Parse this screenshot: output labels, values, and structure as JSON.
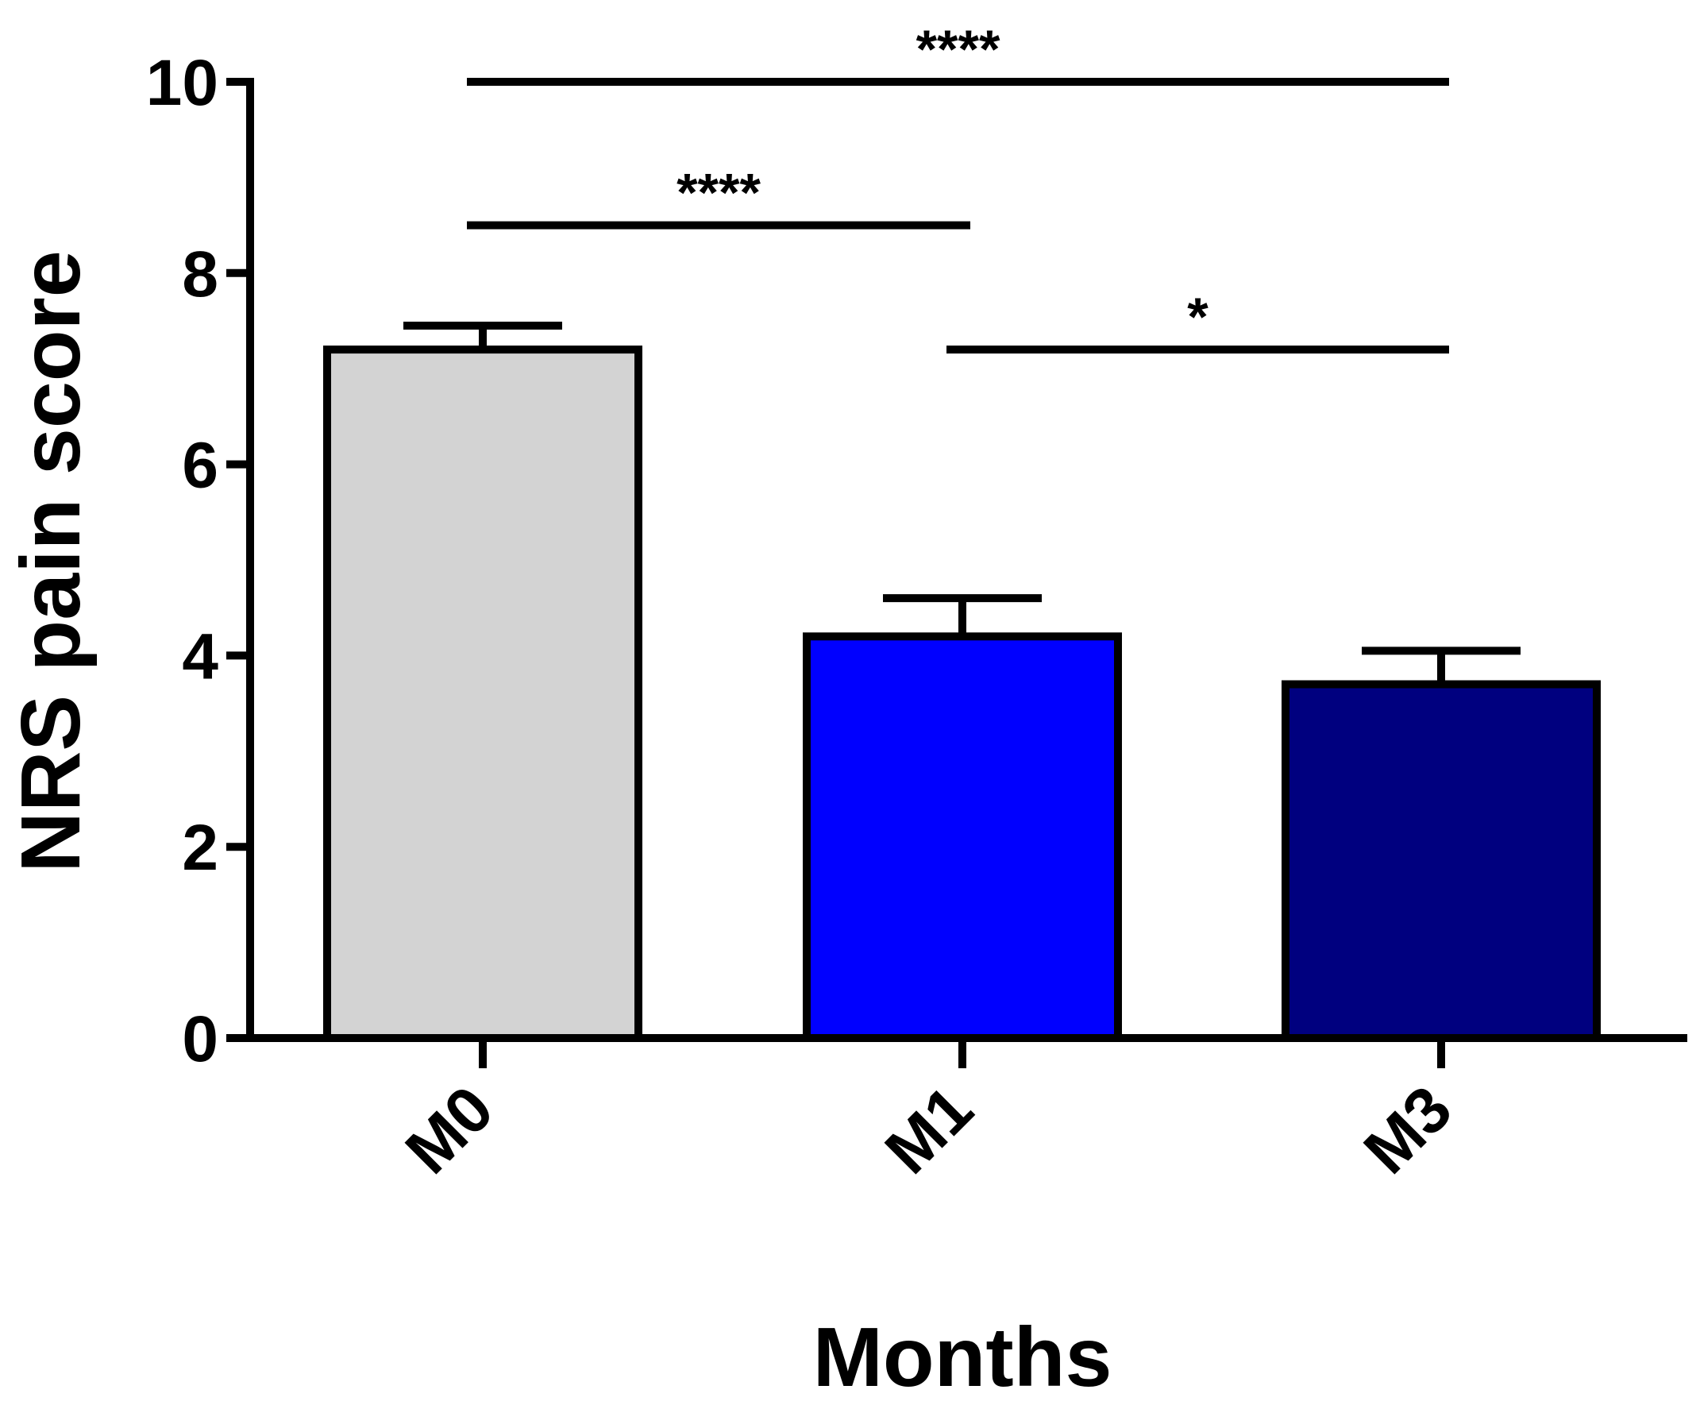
{
  "chart_data": {
    "type": "bar",
    "title": "",
    "xlabel": "Months",
    "ylabel": "NRS pain score",
    "categories": [
      "M0",
      "M1",
      "M3"
    ],
    "values": [
      7.2,
      4.2,
      3.7
    ],
    "error_plus": [
      0.25,
      0.4,
      0.35
    ],
    "colors": [
      "#d3d3d3",
      "#0000ff",
      "#00007f"
    ],
    "ylim": [
      0,
      10
    ],
    "yticks": [
      "0",
      "2",
      "4",
      "6",
      "8",
      "10"
    ],
    "grid": false,
    "legend": "none",
    "significance": [
      {
        "from": "M0",
        "to": "M3",
        "y": 10.0,
        "label": "****"
      },
      {
        "from": "M0",
        "to": "M1",
        "y": 8.5,
        "label": "****"
      },
      {
        "from": "M1",
        "to": "M3",
        "y": 7.2,
        "label": "*"
      }
    ]
  }
}
